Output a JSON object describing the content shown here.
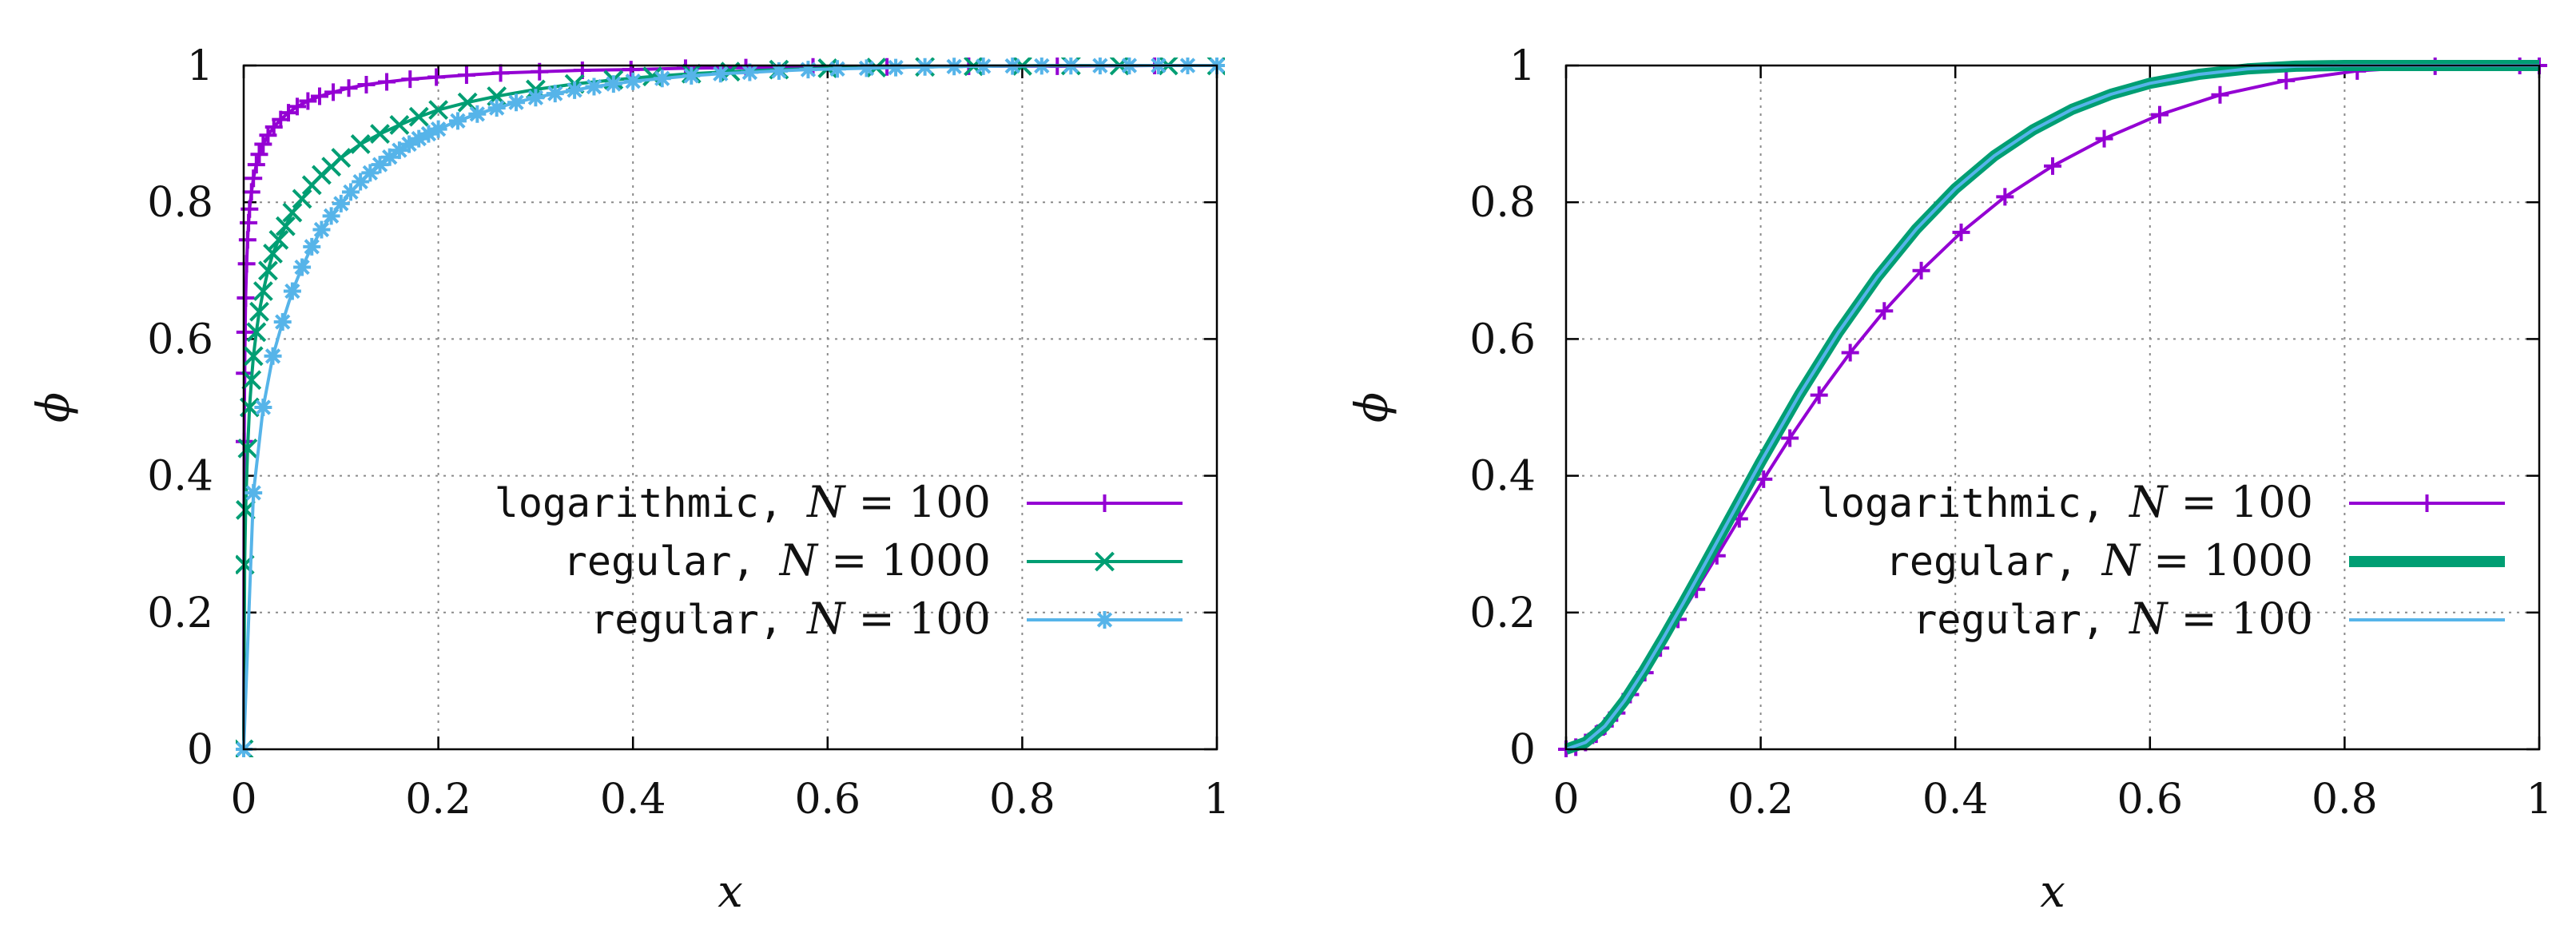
{
  "chart_data": [
    {
      "type": "line",
      "title": "",
      "xlabel": "x",
      "ylabel": "ϕ",
      "xlim": [
        0,
        1
      ],
      "ylim": [
        0,
        1
      ],
      "grid": true,
      "legend_position": "bottom-right",
      "xticks": [
        "0",
        "0.2",
        "0.4",
        "0.6",
        "0.8",
        "1"
      ],
      "yticks": [
        "0",
        "0.2",
        "0.4",
        "0.6",
        "0.8",
        "1"
      ],
      "series": [
        {
          "name": "logarithmic, N = 100",
          "legend_mono": "logarithmic,",
          "legend_math": "N = 100",
          "color": "#9400d3",
          "marker": "plus",
          "x": [
            0.0,
            0.0005,
            0.001,
            0.0015,
            0.002,
            0.003,
            0.004,
            0.005,
            0.006,
            0.008,
            0.01,
            0.013,
            0.016,
            0.02,
            0.025,
            0.031,
            0.038,
            0.046,
            0.055,
            0.066,
            0.078,
            0.092,
            0.108,
            0.126,
            0.147,
            0.171,
            0.198,
            0.229,
            0.264,
            0.304,
            0.348,
            0.398,
            0.454,
            0.516,
            0.585,
            0.661,
            0.745,
            0.836,
            0.936,
            1.0
          ],
          "y": [
            0.0,
            0.45,
            0.55,
            0.61,
            0.66,
            0.71,
            0.745,
            0.77,
            0.79,
            0.815,
            0.835,
            0.855,
            0.87,
            0.885,
            0.898,
            0.91,
            0.921,
            0.931,
            0.94,
            0.948,
            0.955,
            0.961,
            0.967,
            0.972,
            0.976,
            0.98,
            0.983,
            0.986,
            0.989,
            0.991,
            0.993,
            0.994,
            0.996,
            0.997,
            0.998,
            0.998,
            0.999,
            0.999,
            1.0,
            1.0
          ]
        },
        {
          "name": "regular, N = 1000",
          "legend_mono": "regular,",
          "legend_math": "N = 1000",
          "color": "#009e73",
          "marker": "cross",
          "x": [
            0.0,
            0.001,
            0.002,
            0.004,
            0.006,
            0.008,
            0.01,
            0.013,
            0.016,
            0.02,
            0.025,
            0.03,
            0.036,
            0.043,
            0.05,
            0.06,
            0.07,
            0.08,
            0.09,
            0.1,
            0.12,
            0.14,
            0.16,
            0.18,
            0.2,
            0.23,
            0.26,
            0.3,
            0.34,
            0.38,
            0.42,
            0.46,
            0.5,
            0.55,
            0.6,
            0.65,
            0.7,
            0.75,
            0.8,
            0.85,
            0.9,
            0.95,
            1.0
          ],
          "y": [
            0.0,
            0.27,
            0.35,
            0.44,
            0.5,
            0.54,
            0.575,
            0.61,
            0.64,
            0.67,
            0.7,
            0.725,
            0.745,
            0.765,
            0.785,
            0.805,
            0.825,
            0.84,
            0.852,
            0.865,
            0.885,
            0.9,
            0.913,
            0.925,
            0.935,
            0.946,
            0.955,
            0.965,
            0.973,
            0.979,
            0.984,
            0.988,
            0.991,
            0.994,
            0.996,
            0.997,
            0.998,
            0.999,
            0.9995,
            1.0,
            1.0,
            1.0,
            1.0
          ]
        },
        {
          "name": "regular, N = 100",
          "legend_mono": "regular,",
          "legend_math": "N = 100",
          "color": "#56b4e9",
          "marker": "star",
          "x": [
            0.0,
            0.01,
            0.02,
            0.03,
            0.04,
            0.05,
            0.06,
            0.07,
            0.08,
            0.09,
            0.1,
            0.11,
            0.12,
            0.13,
            0.14,
            0.15,
            0.16,
            0.17,
            0.18,
            0.19,
            0.2,
            0.22,
            0.24,
            0.26,
            0.28,
            0.3,
            0.32,
            0.34,
            0.36,
            0.38,
            0.4,
            0.43,
            0.46,
            0.49,
            0.52,
            0.55,
            0.58,
            0.61,
            0.64,
            0.67,
            0.7,
            0.73,
            0.76,
            0.79,
            0.82,
            0.85,
            0.88,
            0.91,
            0.94,
            0.97,
            1.0
          ],
          "y": [
            0.0,
            0.375,
            0.5,
            0.575,
            0.625,
            0.67,
            0.705,
            0.735,
            0.76,
            0.78,
            0.798,
            0.815,
            0.83,
            0.843,
            0.855,
            0.866,
            0.876,
            0.885,
            0.893,
            0.9,
            0.907,
            0.919,
            0.929,
            0.938,
            0.946,
            0.953,
            0.959,
            0.964,
            0.969,
            0.973,
            0.977,
            0.981,
            0.985,
            0.988,
            0.99,
            0.992,
            0.994,
            0.995,
            0.996,
            0.997,
            0.998,
            0.9985,
            0.999,
            0.9993,
            0.9995,
            0.9997,
            0.9998,
            0.9999,
            1.0,
            1.0,
            1.0
          ]
        }
      ]
    },
    {
      "type": "line",
      "title": "",
      "xlabel": "x",
      "ylabel": "ϕ",
      "xlim": [
        0,
        1
      ],
      "ylim": [
        0,
        1
      ],
      "grid": true,
      "legend_position": "bottom-right",
      "xticks": [
        "0",
        "0.2",
        "0.4",
        "0.6",
        "0.8",
        "1"
      ],
      "yticks": [
        "0",
        "0.2",
        "0.4",
        "0.6",
        "0.8",
        "1"
      ],
      "series": [
        {
          "name": "logarithmic, N = 100",
          "legend_mono": "logarithmic,",
          "legend_math": "N = 100",
          "color": "#9400d3",
          "marker": "plus",
          "x": [
            0.0,
            0.01,
            0.02,
            0.031,
            0.04,
            0.052,
            0.066,
            0.081,
            0.097,
            0.115,
            0.134,
            0.155,
            0.178,
            0.203,
            0.23,
            0.26,
            0.292,
            0.327,
            0.365,
            0.406,
            0.451,
            0.5,
            0.553,
            0.61,
            0.672,
            0.74,
            0.813,
            0.893,
            0.98,
            1.0
          ],
          "y": [
            0.0,
            0.003,
            0.01,
            0.022,
            0.034,
            0.053,
            0.08,
            0.112,
            0.148,
            0.19,
            0.234,
            0.283,
            0.337,
            0.395,
            0.455,
            0.518,
            0.58,
            0.641,
            0.7,
            0.756,
            0.808,
            0.853,
            0.893,
            0.928,
            0.957,
            0.978,
            0.992,
            0.999,
            1.0,
            1.0
          ]
        },
        {
          "name": "regular, N = 1000",
          "legend_mono": "regular,",
          "legend_math": "N = 1000",
          "color": "#009e73",
          "marker": "none",
          "x": [
            0.0,
            0.02,
            0.04,
            0.06,
            0.08,
            0.1,
            0.12,
            0.14,
            0.16,
            0.18,
            0.2,
            0.24,
            0.28,
            0.32,
            0.36,
            0.4,
            0.44,
            0.48,
            0.52,
            0.56,
            0.6,
            0.65,
            0.7,
            0.75,
            0.8,
            0.85,
            0.9,
            0.95,
            1.0
          ],
          "y": [
            0.0,
            0.01,
            0.034,
            0.071,
            0.115,
            0.163,
            0.213,
            0.264,
            0.316,
            0.368,
            0.42,
            0.519,
            0.61,
            0.691,
            0.761,
            0.82,
            0.868,
            0.906,
            0.936,
            0.958,
            0.974,
            0.987,
            0.995,
            0.999,
            1.0,
            1.0,
            1.0,
            1.0,
            1.0
          ]
        },
        {
          "name": "regular, N = 100",
          "legend_mono": "regular,",
          "legend_math": "N = 100",
          "color": "#56b4e9",
          "marker": "none",
          "x": [
            0.0,
            0.02,
            0.04,
            0.06,
            0.08,
            0.1,
            0.12,
            0.14,
            0.16,
            0.18,
            0.2,
            0.24,
            0.28,
            0.32,
            0.36,
            0.4,
            0.44,
            0.48,
            0.52,
            0.56,
            0.6,
            0.65,
            0.7,
            0.75,
            0.8,
            0.85,
            0.9,
            0.95,
            1.0
          ],
          "y": [
            0.0,
            0.01,
            0.034,
            0.071,
            0.115,
            0.163,
            0.213,
            0.264,
            0.316,
            0.368,
            0.42,
            0.519,
            0.61,
            0.691,
            0.761,
            0.82,
            0.868,
            0.906,
            0.936,
            0.958,
            0.974,
            0.987,
            0.995,
            0.999,
            1.0,
            1.0,
            1.0,
            1.0,
            1.0
          ]
        }
      ]
    }
  ]
}
